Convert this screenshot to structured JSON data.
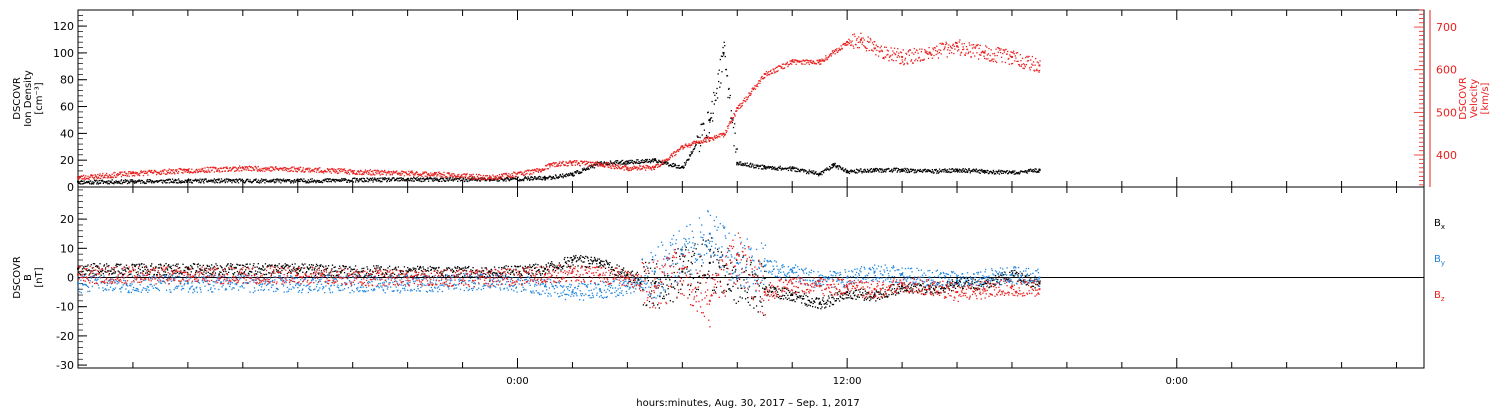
{
  "colors": {
    "black": "#000000",
    "red": "#e8201e",
    "blue": "#1f86e0"
  },
  "xaxis": {
    "title": "hours:minutes, Aug. 30, 2017 – Sep.  1, 2017",
    "ticks": [
      {
        "t": -16,
        "label": ""
      },
      {
        "t": -14,
        "label": ""
      },
      {
        "t": -12,
        "label": ""
      },
      {
        "t": -10,
        "label": ""
      },
      {
        "t": -8,
        "label": ""
      },
      {
        "t": -6,
        "label": ""
      },
      {
        "t": -4,
        "label": ""
      },
      {
        "t": -2,
        "label": ""
      },
      {
        "t": 0,
        "label": "0:00"
      },
      {
        "t": 2,
        "label": ""
      },
      {
        "t": 4,
        "label": ""
      },
      {
        "t": 6,
        "label": ""
      },
      {
        "t": 8,
        "label": ""
      },
      {
        "t": 10,
        "label": ""
      },
      {
        "t": 12,
        "label": "12:00"
      },
      {
        "t": 14,
        "label": ""
      },
      {
        "t": 16,
        "label": ""
      },
      {
        "t": 18,
        "label": ""
      },
      {
        "t": 20,
        "label": ""
      },
      {
        "t": 22,
        "label": ""
      },
      {
        "t": 24,
        "label": "0:00"
      },
      {
        "t": 26,
        "label": ""
      },
      {
        "t": 28,
        "label": ""
      },
      {
        "t": 30,
        "label": ""
      },
      {
        "t": 32,
        "label": ""
      }
    ]
  },
  "chart_data": [
    {
      "type": "scatter",
      "title": "",
      "xlabel": "hours:minutes, Aug. 30, 2017 – Sep.  1, 2017",
      "ylabel": "DSCOVR Ion Density [cm⁻³]",
      "ylabel_lines": [
        "DSCOVR",
        "Ion Density",
        "[cm⁻³]"
      ],
      "y2label": "DSCOVR Velocity [km/s]",
      "y2label_lines": [
        "DSCOVR",
        "Velocity",
        "[km/s]"
      ],
      "xlim_hours": [
        -16,
        33
      ],
      "ylim": [
        0,
        132
      ],
      "y2lim": [
        325,
        740
      ],
      "yticks": [
        0,
        20,
        40,
        60,
        80,
        100,
        120
      ],
      "y2ticks": [
        400,
        500,
        600,
        700
      ],
      "series": [
        {
          "axis": "left",
          "color": "#000000",
          "x": [
            -16,
            -12,
            -8,
            -4,
            -1,
            1,
            2,
            3,
            4,
            5,
            6,
            7,
            7.5,
            8,
            9,
            10,
            11,
            11.5,
            12,
            13,
            14,
            15,
            16,
            17,
            18,
            19
          ],
          "values": [
            4,
            5,
            5,
            6,
            6,
            7,
            10,
            18,
            19,
            20,
            15,
            50,
            100,
            18,
            15,
            14,
            10,
            17,
            12,
            13,
            13,
            12,
            13,
            12,
            11,
            13
          ]
        },
        {
          "axis": "right",
          "color": "#e8201e",
          "x": [
            -16,
            -14,
            -12,
            -10,
            -8,
            -6,
            -3,
            -1,
            0.8,
            1.2,
            2,
            3,
            4,
            5,
            6,
            7,
            7.5,
            8,
            9,
            10,
            11,
            12,
            12.5,
            13,
            14,
            15,
            16,
            17,
            18,
            19
          ],
          "values": [
            348,
            358,
            365,
            370,
            368,
            362,
            356,
            348,
            365,
            378,
            383,
            380,
            370,
            372,
            420,
            440,
            450,
            510,
            590,
            620,
            620,
            665,
            670,
            650,
            630,
            640,
            655,
            640,
            630,
            610
          ]
        }
      ]
    },
    {
      "type": "scatter",
      "title": "",
      "ylabel": "DSCOVR B [nT]",
      "ylabel_lines": [
        "DSCOVR",
        "B",
        "[nT]"
      ],
      "xlim_hours": [
        -16,
        33
      ],
      "ylim": [
        -31,
        31
      ],
      "yticks": [
        -30,
        -20,
        -10,
        0,
        10,
        20
      ],
      "zero_line": true,
      "series": [
        {
          "name": "Bx",
          "label_base": "B",
          "label_sub": "x",
          "color": "#000000",
          "x": [
            -16,
            -12,
            -8,
            -4,
            -1,
            1,
            2,
            3,
            4,
            5,
            6,
            7,
            8,
            9,
            10,
            11,
            12,
            13,
            14,
            15,
            16,
            17,
            18,
            19
          ],
          "values": [
            3,
            3,
            3,
            2,
            2,
            3,
            6,
            5,
            1,
            -2,
            2,
            5,
            0,
            -4,
            -6,
            -9,
            -5,
            -6,
            -3,
            -4,
            -2,
            -2,
            1,
            -2
          ]
        },
        {
          "name": "By",
          "label_base": "B",
          "label_sub": "y",
          "color": "#1f86e0",
          "x": [
            -16,
            -12,
            -8,
            -4,
            -1,
            1,
            2,
            3,
            4,
            5,
            6,
            7,
            8,
            9,
            10,
            11,
            12,
            13,
            14,
            15,
            16,
            17,
            18,
            19
          ],
          "values": [
            -2,
            -2,
            -2,
            -2,
            -1,
            -3,
            -5,
            -4,
            -3,
            2,
            8,
            15,
            5,
            4,
            2,
            -1,
            0,
            2,
            1,
            0,
            -1,
            0,
            1,
            0
          ]
        },
        {
          "name": "Bz",
          "label_base": "B",
          "label_sub": "z",
          "color": "#e8201e",
          "x": [
            -16,
            -12,
            -8,
            -4,
            -1,
            1,
            2,
            3,
            4,
            5,
            6,
            7,
            8,
            9,
            10,
            11,
            12,
            13,
            14,
            15,
            16,
            17,
            18,
            19
          ],
          "values": [
            1,
            1,
            1,
            0,
            0,
            1,
            2,
            1,
            0,
            -3,
            3,
            -8,
            8,
            -5,
            -2,
            -3,
            -3,
            -4,
            -2,
            -3,
            -5,
            -4,
            -3,
            -4
          ]
        }
      ]
    }
  ]
}
